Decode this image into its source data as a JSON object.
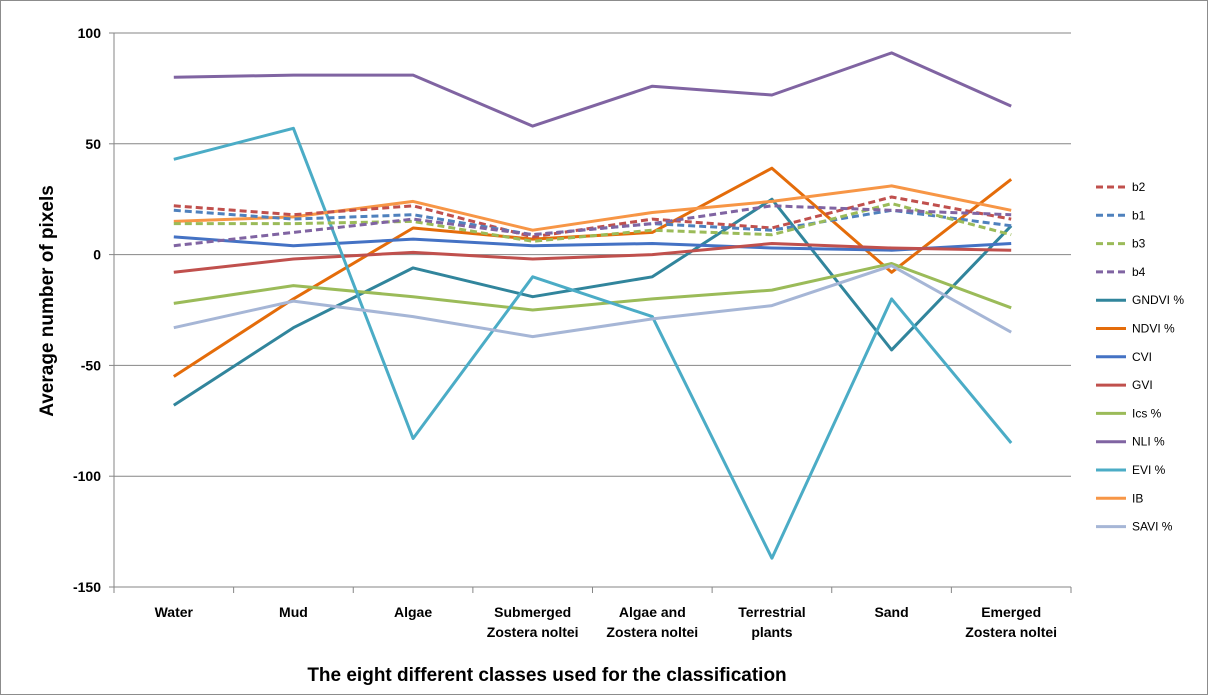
{
  "chart_data": {
    "type": "line",
    "title": "",
    "xlabel": "The eight different classes used for the classification",
    "ylabel": "Average number of pixels",
    "ylim": [
      -150,
      100
    ],
    "yticks": [
      "100",
      "50",
      "0",
      "-50",
      "-100",
      "-150"
    ],
    "grid": "horizontal",
    "legend_position": "right",
    "categories": [
      [
        "Water"
      ],
      [
        "Mud"
      ],
      [
        "Algae"
      ],
      [
        "Submerged",
        "Zostera noltei"
      ],
      [
        "Algae  and",
        "Zostera noltei"
      ],
      [
        "Terrestrial",
        "plants"
      ],
      [
        "Sand"
      ],
      [
        "Emerged",
        "Zostera noltei"
      ]
    ],
    "series": [
      {
        "name": "b2",
        "color": "#c0504d",
        "dashed": true,
        "values": [
          22,
          18,
          22,
          8,
          16,
          12,
          26,
          16
        ]
      },
      {
        "name": "b1",
        "color": "#4f81bd",
        "dashed": true,
        "values": [
          20,
          16,
          18,
          9,
          14,
          11,
          20,
          13
        ]
      },
      {
        "name": "b3",
        "color": "#9bbb59",
        "dashed": true,
        "values": [
          14,
          14,
          15,
          6,
          11,
          9,
          23,
          9
        ]
      },
      {
        "name": "b4",
        "color": "#8064a2",
        "dashed": true,
        "values": [
          4,
          10,
          16,
          9,
          14,
          22,
          20,
          18
        ]
      },
      {
        "name": "GNDVI %",
        "color": "#31859c",
        "dashed": false,
        "values": [
          -68,
          -33,
          -6,
          -19,
          -10,
          25,
          -43,
          13
        ]
      },
      {
        "name": "NDVI %",
        "color": "#e46c0a",
        "dashed": false,
        "values": [
          -55,
          -20,
          12,
          7,
          10,
          39,
          -8,
          34
        ]
      },
      {
        "name": "CVI",
        "color": "#4472c4",
        "dashed": false,
        "values": [
          8,
          4,
          7,
          4,
          5,
          3,
          2,
          5
        ]
      },
      {
        "name": "GVI",
        "color": "#c0504d",
        "dashed": false,
        "values": [
          -8,
          -2,
          1,
          -2,
          0,
          5,
          3,
          2
        ]
      },
      {
        "name": "Ics %",
        "color": "#9bbb59",
        "dashed": false,
        "values": [
          -22,
          -14,
          -19,
          -25,
          -20,
          -16,
          -4,
          -24
        ]
      },
      {
        "name": "NLI %",
        "color": "#8064a2",
        "dashed": false,
        "values": [
          80,
          81,
          81,
          58,
          76,
          72,
          91,
          67
        ]
      },
      {
        "name": "EVI %",
        "color": "#4bacc6",
        "dashed": false,
        "values": [
          43,
          57,
          -83,
          -10,
          -28,
          -137,
          -20,
          -85
        ]
      },
      {
        "name": "IB",
        "color": "#f79646",
        "dashed": false,
        "values": [
          15,
          17,
          24,
          11,
          19,
          24,
          31,
          20
        ]
      },
      {
        "name": "SAVI %",
        "color": "#a6b6d6",
        "dashed": false,
        "values": [
          -33,
          -21,
          -28,
          -37,
          -29,
          -23,
          -5,
          -35
        ]
      }
    ]
  }
}
